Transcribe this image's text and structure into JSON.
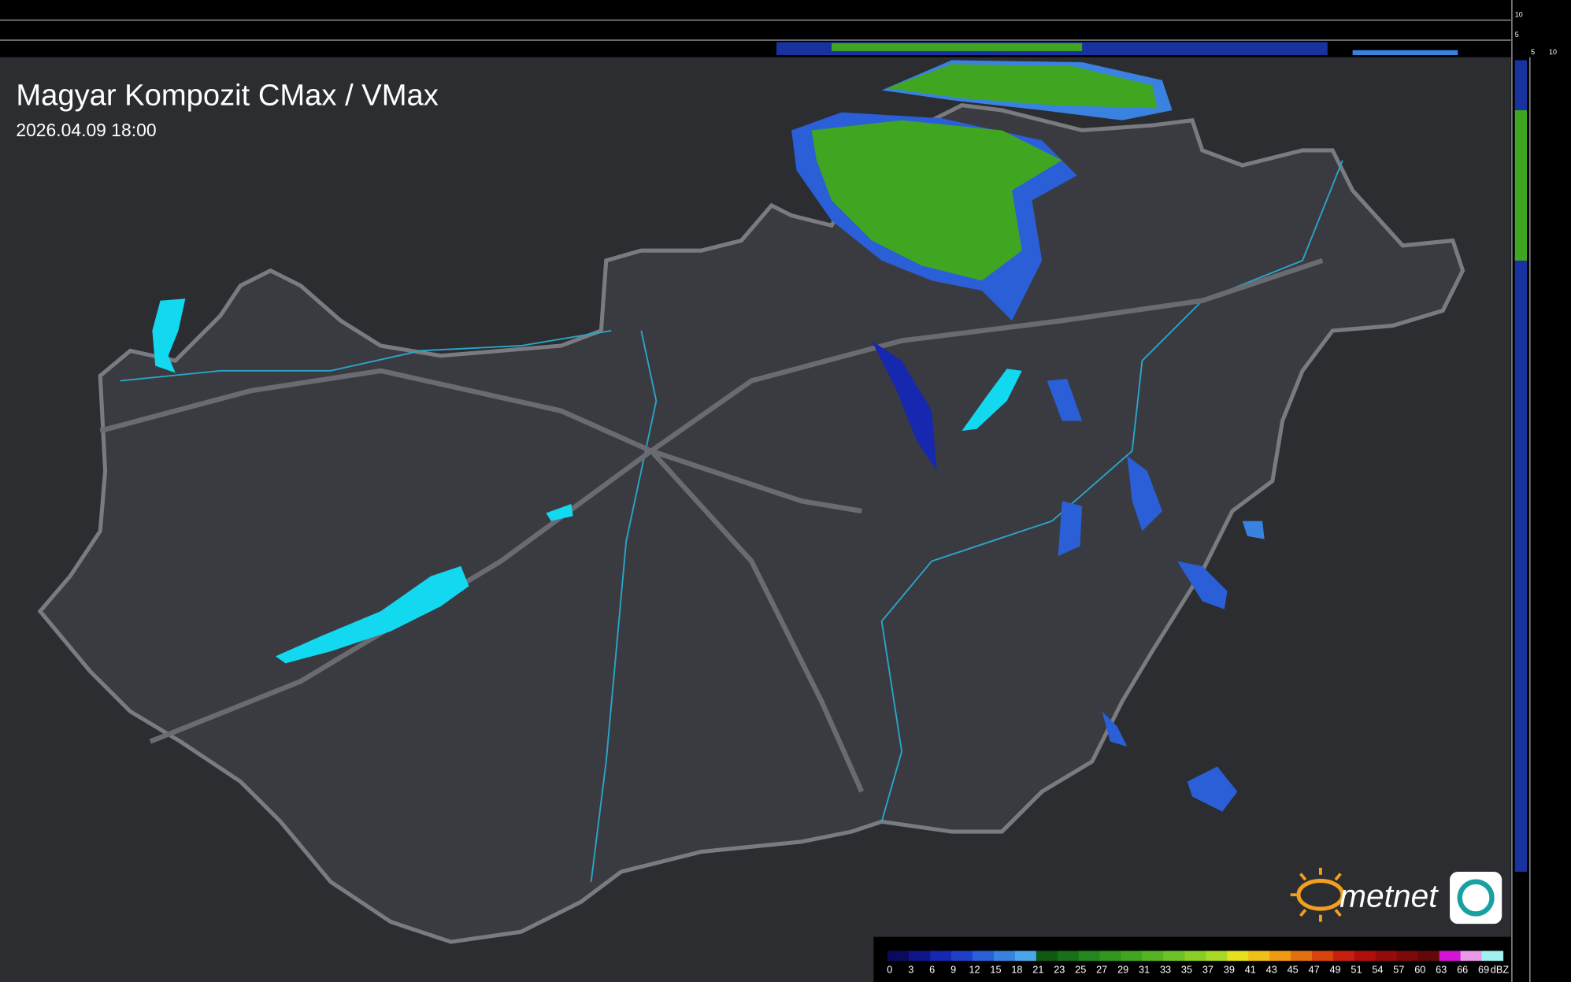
{
  "header": {
    "title": "Magyar Kompozit CMax / VMax",
    "timestamp": "2026.04.09 18:00"
  },
  "profile": {
    "top_ticks": [
      10,
      5
    ],
    "side_ticks": [
      5,
      10
    ]
  },
  "logo": {
    "text": "metnet"
  },
  "legend": {
    "unit": "dBZ",
    "values": [
      0,
      3,
      6,
      9,
      12,
      15,
      18,
      21,
      23,
      25,
      27,
      29,
      31,
      33,
      35,
      37,
      39,
      41,
      43,
      45,
      47,
      49,
      51,
      54,
      57,
      60,
      63,
      66,
      69
    ],
    "colors": [
      "#0b0b5e",
      "#10168a",
      "#1628b0",
      "#1e40c8",
      "#2a5fd8",
      "#3a82e0",
      "#4aa6ea",
      "#0e5a12",
      "#187018",
      "#24861e",
      "#32961f",
      "#40a622",
      "#55b424",
      "#6cc226",
      "#88ce26",
      "#a6d828",
      "#e6e01e",
      "#f0c018",
      "#f09a14",
      "#e07010",
      "#d8440e",
      "#c8200e",
      "#b0100c",
      "#960c0c",
      "#7c0a0a",
      "#620808",
      "#d414d4",
      "#e89ae8",
      "#a0f0f0"
    ]
  }
}
